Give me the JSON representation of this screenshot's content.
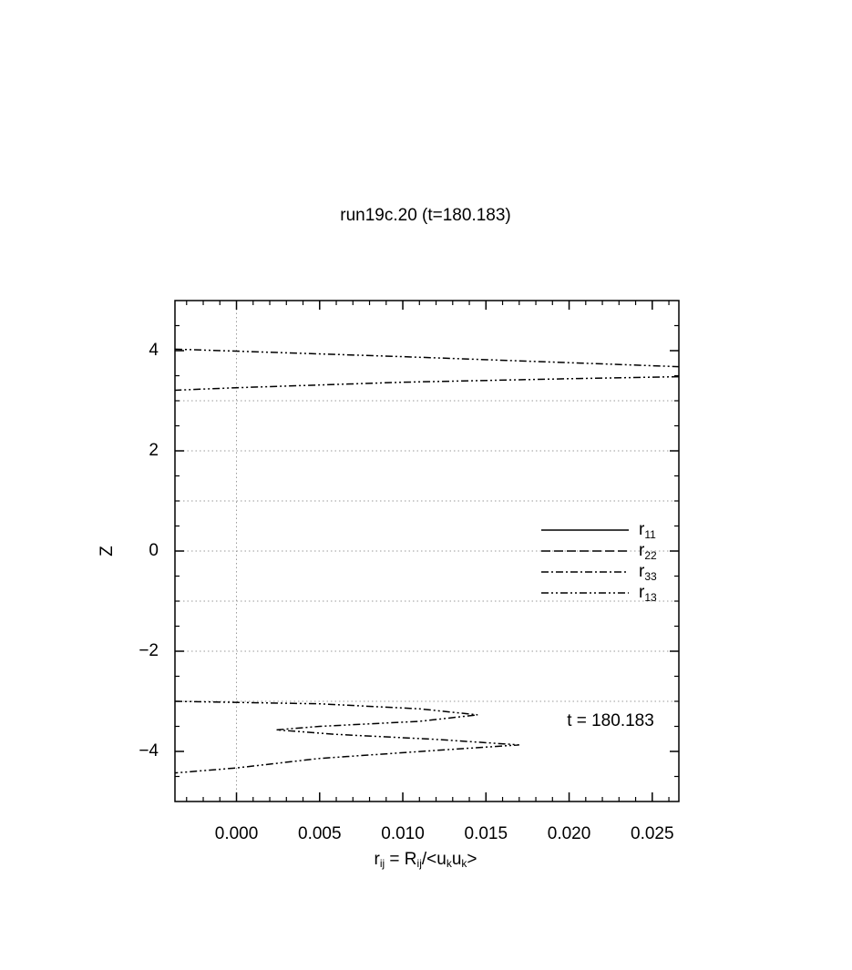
{
  "chart_data": {
    "type": "line",
    "title": "run19c.20 (t=180.183)",
    "ylabel": "Z",
    "xlabel": [
      {
        "text": "r"
      },
      {
        "text": "ij",
        "sub": true
      },
      {
        "text": " = R"
      },
      {
        "text": "ij",
        "sub": true
      },
      {
        "text": "/<u"
      },
      {
        "text": "k",
        "sub": true
      },
      {
        "text": "u"
      },
      {
        "text": "k",
        "sub": true
      },
      {
        "text": ">"
      }
    ],
    "annotation": "t = 180.183",
    "xlim": [
      -0.0037,
      0.0266
    ],
    "ylim": [
      -5,
      5
    ],
    "xticks": [
      {
        "value": 0,
        "label": "0.000"
      },
      {
        "value": 0.005,
        "label": "0.005"
      },
      {
        "value": 0.01,
        "label": "0.010"
      },
      {
        "value": 0.015,
        "label": "0.015"
      },
      {
        "value": 0.02,
        "label": "0.020"
      },
      {
        "value": 0.025,
        "label": "0.025"
      }
    ],
    "yticks": [
      {
        "value": -4,
        "label": "−4"
      },
      {
        "value": -2,
        "label": "−2"
      },
      0,
      2,
      4
    ],
    "xminor_ticks": [
      -0.003,
      -0.002,
      -0.001,
      0.001,
      0.002,
      0.003,
      0.004,
      0.006,
      0.007,
      0.008,
      0.009,
      0.011,
      0.012,
      0.013,
      0.014,
      0.016,
      0.017,
      0.018,
      0.019,
      0.021,
      0.022,
      0.023,
      0.024,
      0.026
    ],
    "yminor_ticks": [
      -4.5,
      -3.5,
      -3,
      -2.5,
      -1.5,
      -1,
      -0.5,
      0.5,
      1,
      1.5,
      2.5,
      3,
      3.5,
      4.5
    ],
    "hgrid": [
      -3,
      -2,
      -1,
      0,
      1,
      2,
      3
    ],
    "vgrid": [
      0
    ],
    "series": [
      {
        "name": "r",
        "name_sub": "11",
        "color": "#000000",
        "dash": "none"
      },
      {
        "name": "r",
        "name_sub": "22",
        "color": "#000000",
        "dash": "10,4"
      },
      {
        "name": "r",
        "name_sub": "33",
        "color": "#000000",
        "dash": "8,3,2,3"
      },
      {
        "name": "r",
        "name_sub": "13",
        "color": "#000000",
        "dash": "8,3,2,3,2,3",
        "x": [
          -0.0037,
          0,
          0.01,
          0.02,
          0.0266,
          null,
          0.0266,
          0.02,
          0.01,
          0,
          -0.0037,
          null,
          -0.0037,
          0.005,
          0.011,
          0.0145,
          0.011,
          0.005,
          0.0024,
          0.006,
          0.012,
          0.017,
          0.012,
          0.005,
          0,
          -0.0037
        ],
        "z": [
          4.03,
          3.99,
          3.88,
          3.76,
          3.68,
          null,
          3.48,
          3.44,
          3.37,
          3.26,
          3.21,
          null,
          -3.0,
          -3.05,
          -3.15,
          -3.27,
          -3.4,
          -3.5,
          -3.57,
          -3.66,
          -3.76,
          -3.87,
          -3.98,
          -4.14,
          -4.33,
          -4.43
        ]
      }
    ]
  }
}
